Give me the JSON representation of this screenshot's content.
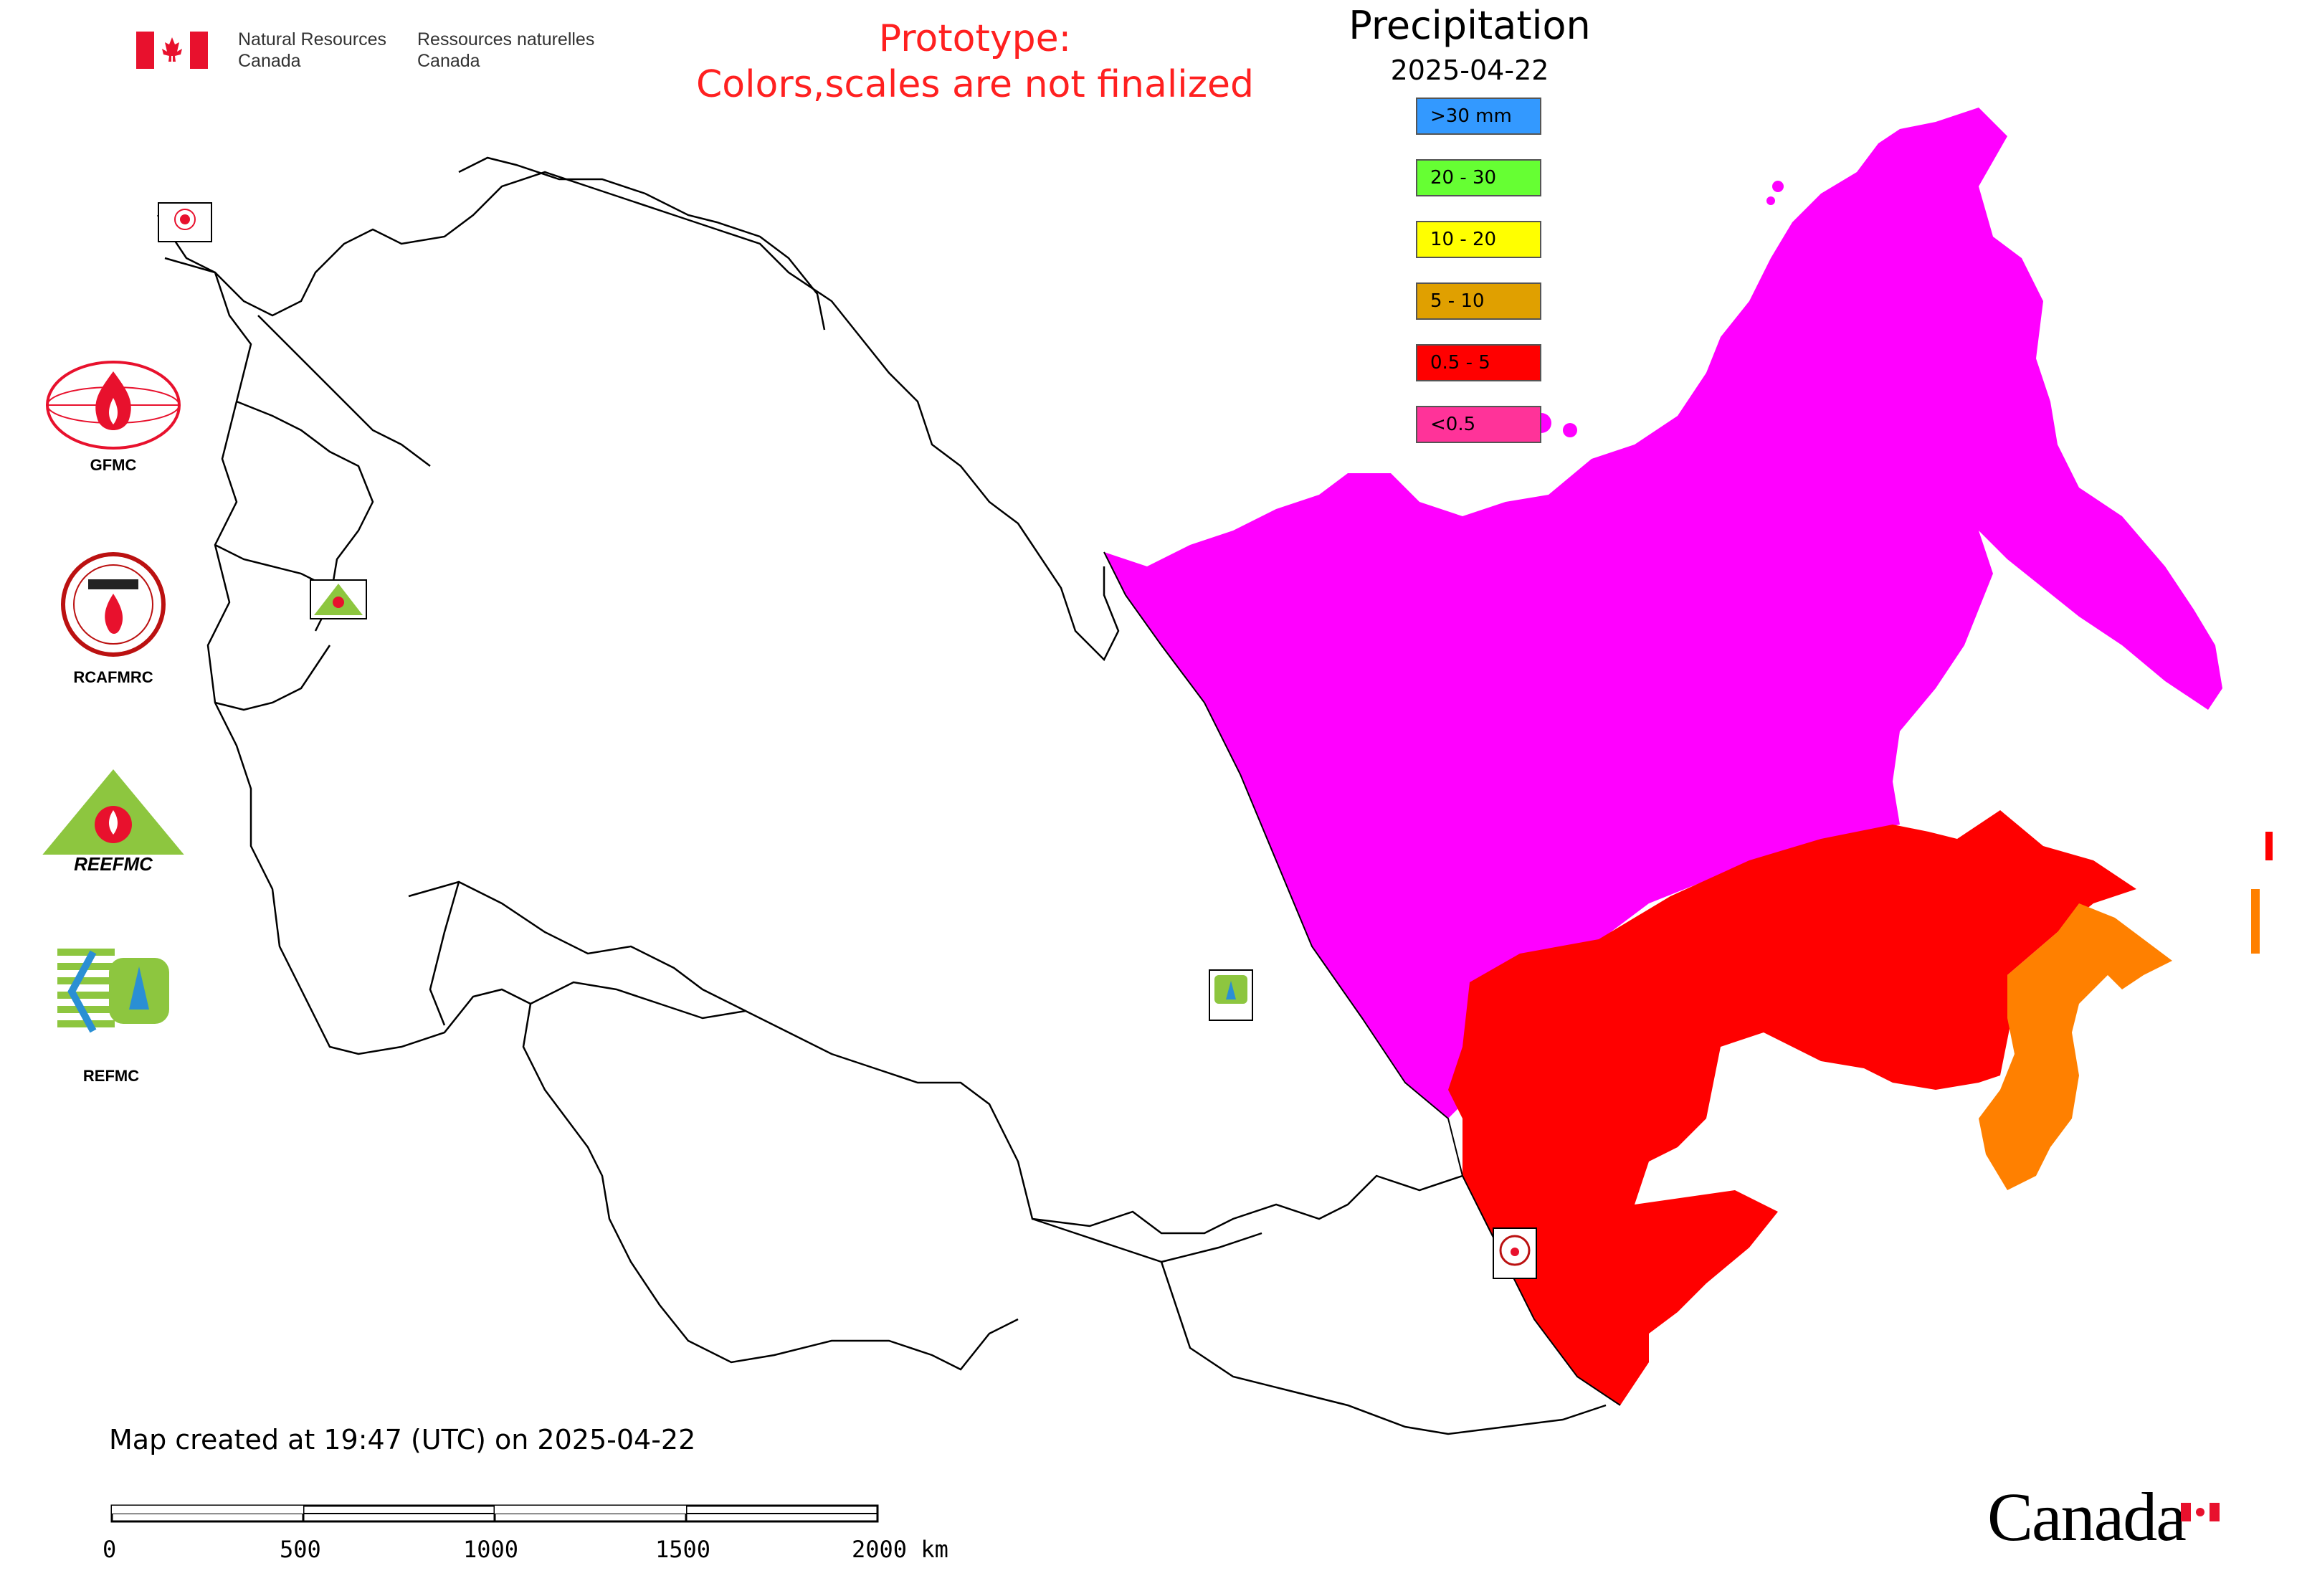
{
  "header": {
    "agency_en_line1": "Natural Resources",
    "agency_en_line2": "Canada",
    "agency_fr_line1": "Ressources naturelles",
    "agency_fr_line2": "Canada",
    "prototype_line1": "Prototype:",
    "prototype_line2": "Colors,scales are not finalized"
  },
  "legend": {
    "title": "Precipitation",
    "date": "2025-04-22",
    "items": [
      {
        "label": ">30 mm",
        "color": "#3399ff"
      },
      {
        "label": "20 - 30",
        "color": "#66ff33"
      },
      {
        "label": "10 - 20",
        "color": "#ffff00"
      },
      {
        "label": "5 - 10",
        "color": "#e0a000"
      },
      {
        "label": "0.5 - 5",
        "color": "#ff0000"
      },
      {
        "label": "<0.5",
        "color": "#ff3399"
      }
    ]
  },
  "map_colors": {
    "lt_0_5_region": "#ff00ff",
    "band_0_5_5": "#ff0000",
    "band_5_10": "#ff8000",
    "outline": "#000000"
  },
  "side_logos": [
    {
      "label": "GFMC"
    },
    {
      "label": "RCAFMRC"
    },
    {
      "label": "REEFMC"
    },
    {
      "label": "REFMC"
    }
  ],
  "map_badges": [
    {
      "label": "GFMC"
    },
    {
      "label": "REEFMC"
    },
    {
      "label": "REFMC"
    },
    {
      "label": "RCAFMRC"
    }
  ],
  "footer": {
    "created_text": "Map created at 19:47 (UTC) on 2025-04-22",
    "scale_labels": [
      "0",
      "500",
      "1000",
      "1500",
      "2000 km"
    ],
    "wordmark": "Canada"
  }
}
